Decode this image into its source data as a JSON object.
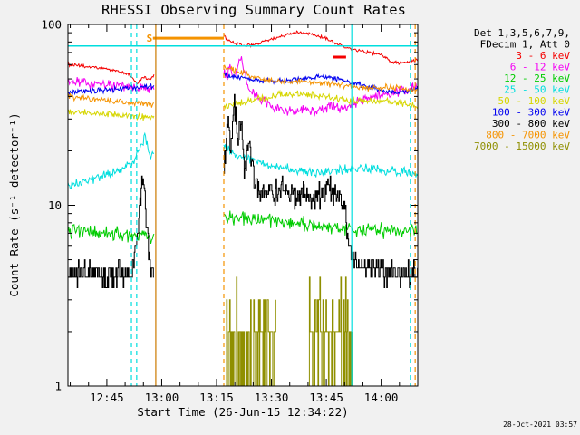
{
  "chart_data": {
    "type": "line",
    "title": "RHESSI Observing Summary Count Rates",
    "xlabel": "Start Time (26-Jun-15 12:34:22)",
    "ylabel": "Count Rate (s⁻¹ detector⁻¹)",
    "timestamp": "28-Oct-2021 03:57",
    "yscale": "log",
    "xlim": [
      12.5728,
      14.1667
    ],
    "ylim": [
      1,
      100
    ],
    "background": "#f1f1f1",
    "plot_background": "#ffffff",
    "xticks": [
      {
        "value": 12.75,
        "label": "12:45"
      },
      {
        "value": 13.0,
        "label": "13:00"
      },
      {
        "value": 13.25,
        "label": "13:15"
      },
      {
        "value": 13.5,
        "label": "13:30"
      },
      {
        "value": 13.75,
        "label": "13:45"
      },
      {
        "value": 14.0,
        "label": "14:00"
      }
    ],
    "yticks": [
      {
        "value": 1,
        "label": "1"
      },
      {
        "value": 10,
        "label": "10"
      },
      {
        "value": 100,
        "label": "100"
      }
    ],
    "legend": {
      "header": [
        "Det 1,3,5,6,7,9,",
        "FDecim 1, Att 0"
      ]
    },
    "series": [
      {
        "name": "3 - 6 keV",
        "color": "#f40000",
        "noise": 0.008,
        "mode": "line",
        "segments": [
          [
            [
              12.5728,
              60
            ],
            [
              12.68,
              58
            ],
            [
              12.78,
              56
            ],
            [
              12.855,
              53
            ],
            [
              12.885,
              47
            ],
            [
              12.915,
              51
            ],
            [
              12.945,
              50
            ],
            [
              12.967,
              52
            ]
          ],
          [
            [
              13.283,
              86
            ],
            [
              13.32,
              80
            ],
            [
              13.37,
              76
            ],
            [
              13.43,
              78
            ],
            [
              13.5,
              83
            ],
            [
              13.57,
              88
            ],
            [
              13.62,
              91
            ],
            [
              13.68,
              89
            ],
            [
              13.74,
              84
            ],
            [
              13.8,
              78
            ],
            [
              13.87,
              73
            ],
            [
              13.94,
              70
            ],
            [
              14.0,
              68
            ],
            [
              14.05,
              62
            ],
            [
              14.1,
              61
            ],
            [
              14.1667,
              64
            ]
          ]
        ]
      },
      {
        "name": "6 - 12 keV",
        "color": "#f400f4",
        "noise": 0.025,
        "mode": "line",
        "segments": [
          [
            [
              12.5728,
              48
            ],
            [
              12.75,
              46
            ],
            [
              12.9,
              44.5
            ],
            [
              12.967,
              44
            ]
          ],
          [
            [
              13.283,
              57
            ],
            [
              13.298,
              50
            ],
            [
              13.312,
              63
            ],
            [
              13.326,
              49
            ],
            [
              13.344,
              56
            ],
            [
              13.362,
              68
            ],
            [
              13.38,
              52
            ],
            [
              13.4,
              43
            ],
            [
              13.43,
              40
            ],
            [
              13.47,
              37
            ],
            [
              13.52,
              34.5
            ],
            [
              13.58,
              33
            ],
            [
              13.65,
              34
            ],
            [
              13.71,
              33
            ],
            [
              13.77,
              35.5
            ],
            [
              13.83,
              34
            ],
            [
              13.9,
              38
            ],
            [
              13.97,
              40
            ],
            [
              14.05,
              42
            ],
            [
              14.12,
              44
            ],
            [
              14.1667,
              45
            ]
          ]
        ]
      },
      {
        "name": "12 - 25 keV",
        "color": "#00cc00",
        "noise": 0.035,
        "mode": "line",
        "segments": [
          [
            [
              12.5728,
              7.2
            ],
            [
              12.77,
              7
            ],
            [
              12.967,
              6.8
            ]
          ],
          [
            [
              13.283,
              8.6
            ],
            [
              13.45,
              8.4
            ],
            [
              13.6,
              8
            ],
            [
              13.75,
              7.6
            ],
            [
              13.9,
              7.3
            ],
            [
              14.05,
              7.2
            ],
            [
              14.1667,
              7.4
            ]
          ]
        ]
      },
      {
        "name": "25 - 50 keV",
        "color": "#00dede",
        "noise": 0.022,
        "mode": "line",
        "segments": [
          [
            [
              12.5728,
              13
            ],
            [
              12.7,
              14
            ],
            [
              12.8,
              15.5
            ],
            [
              12.865,
              17
            ],
            [
              12.9,
              21
            ],
            [
              12.925,
              24
            ],
            [
              12.945,
              19
            ],
            [
              12.967,
              19.5
            ]
          ],
          [
            [
              13.283,
              21
            ],
            [
              13.35,
              19
            ],
            [
              13.45,
              17
            ],
            [
              13.55,
              16
            ],
            [
              13.7,
              15.2
            ],
            [
              13.85,
              15.8
            ],
            [
              13.95,
              16
            ],
            [
              14.05,
              15.5
            ],
            [
              14.1667,
              15
            ]
          ]
        ]
      },
      {
        "name": "50 - 100 keV",
        "color": "#d6d600",
        "noise": 0.016,
        "mode": "line",
        "segments": [
          [
            [
              12.5728,
              33
            ],
            [
              12.75,
              32
            ],
            [
              12.967,
              30.5
            ]
          ],
          [
            [
              13.283,
              35
            ],
            [
              13.4,
              38
            ],
            [
              13.52,
              40.5
            ],
            [
              13.62,
              41.5
            ],
            [
              13.72,
              40.5
            ],
            [
              13.82,
              38.5
            ],
            [
              13.92,
              37.5
            ],
            [
              14.02,
              38
            ],
            [
              14.1,
              36.5
            ],
            [
              14.1667,
              35.5
            ]
          ]
        ]
      },
      {
        "name": "100 - 300 keV",
        "color": "#0000f0",
        "noise": 0.013,
        "mode": "line",
        "segments": [
          [
            [
              12.5728,
              42
            ],
            [
              12.75,
              43.5
            ],
            [
              12.9,
              45
            ],
            [
              12.967,
              46
            ]
          ],
          [
            [
              13.283,
              52
            ],
            [
              13.4,
              50
            ],
            [
              13.5,
              48.5
            ],
            [
              13.62,
              50
            ],
            [
              13.72,
              51.5
            ],
            [
              13.82,
              49.5
            ],
            [
              13.92,
              46
            ],
            [
              14.0,
              43.5
            ],
            [
              14.07,
              42
            ],
            [
              14.1667,
              44
            ]
          ]
        ]
      },
      {
        "name": "300 - 800 keV",
        "color": "#000000",
        "noise": 0.06,
        "mode": "steps",
        "quantize": 0.5,
        "segments": [
          [
            [
              12.5728,
              4.3
            ],
            [
              12.75,
              4.1
            ],
            [
              12.86,
              4
            ],
            [
              12.895,
              8
            ],
            [
              12.915,
              16
            ],
            [
              12.932,
              7
            ],
            [
              12.95,
              4.2
            ],
            [
              12.967,
              4
            ]
          ],
          [
            [
              13.283,
              16
            ],
            [
              13.302,
              30
            ],
            [
              13.315,
              20
            ],
            [
              13.33,
              38
            ],
            [
              13.345,
              22
            ],
            [
              13.36,
              30
            ],
            [
              13.376,
              16
            ],
            [
              13.398,
              24
            ],
            [
              13.42,
              14
            ],
            [
              13.45,
              12
            ],
            [
              13.5,
              11.5
            ],
            [
              13.55,
              12.5
            ],
            [
              13.6,
              11
            ],
            [
              13.65,
              12
            ],
            [
              13.7,
              11
            ],
            [
              13.75,
              12.5
            ],
            [
              13.8,
              11
            ],
            [
              13.832,
              10
            ],
            [
              13.85,
              6
            ],
            [
              13.875,
              5
            ],
            [
              13.92,
              4.6
            ],
            [
              14.0,
              4.4
            ],
            [
              14.1,
              4.2
            ],
            [
              14.1667,
              4.3
            ]
          ]
        ]
      },
      {
        "name": "800 - 7000 keV",
        "color": "#f59300",
        "noise": 0.014,
        "mode": "line",
        "segments": [
          [
            [
              12.5728,
              40
            ],
            [
              12.75,
              38
            ],
            [
              12.9,
              36.5
            ],
            [
              12.967,
              36
            ]
          ],
          [
            [
              13.283,
              58
            ],
            [
              13.37,
              54
            ],
            [
              13.45,
              50
            ],
            [
              13.55,
              48
            ],
            [
              13.65,
              48.5
            ],
            [
              13.75,
              47
            ],
            [
              13.85,
              45.5
            ],
            [
              13.95,
              44.5
            ],
            [
              14.05,
              45
            ],
            [
              14.1667,
              43.5
            ]
          ]
        ]
      },
      {
        "name": "7000 - 15000 keV",
        "color": "#8f8f00",
        "noise": 0.3,
        "mode": "steps",
        "quantize": 1,
        "segments": [
          [
            [
              13.29,
              1.5
            ],
            [
              13.4,
              1.6
            ],
            [
              13.52,
              1.5
            ]
          ],
          [
            [
              13.67,
              1.7
            ],
            [
              13.76,
              1.8
            ],
            [
              13.87,
              1.6
            ]
          ]
        ]
      }
    ],
    "flags": {
      "hlines": [
        {
          "x0": 12.5728,
          "x1": 14.1667,
          "v": 76,
          "color": "#00dede",
          "width": 1.5
        }
      ],
      "bars": [
        {
          "x0": 12.96,
          "x1": 13.283,
          "v": 84,
          "color": "#f59300",
          "width": 3
        },
        {
          "x0": 13.78,
          "x1": 13.84,
          "v": 66,
          "color": "#f40000",
          "width": 3
        }
      ],
      "vlines": [
        {
          "t": 12.862,
          "color": "#00dede",
          "dashed": true
        },
        {
          "t": 12.886,
          "color": "#00dede",
          "dashed": true
        },
        {
          "t": 12.973,
          "color": "#cc7a00",
          "dashed": false
        },
        {
          "t": 13.283,
          "color": "#f59300",
          "dashed": true
        },
        {
          "t": 13.866,
          "color": "#00dede",
          "dashed": false
        },
        {
          "t": 14.133,
          "color": "#00dede",
          "dashed": true
        },
        {
          "t": 14.155,
          "color": "#f59300",
          "dashed": true
        }
      ],
      "labels": [
        {
          "text": "S",
          "t": 12.944,
          "v": 84,
          "color": "#f59300"
        }
      ]
    }
  }
}
